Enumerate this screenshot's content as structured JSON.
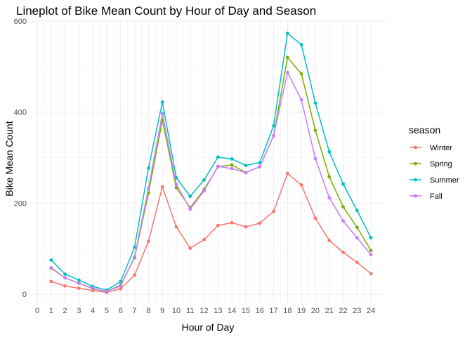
{
  "chart_data": {
    "type": "line",
    "title": "Lineplot of Bike Mean Count by Hour of Day and Season",
    "xlabel": "Hour of Day",
    "ylabel": "Bike Mean Count",
    "x": [
      1,
      2,
      3,
      4,
      5,
      6,
      7,
      8,
      9,
      10,
      11,
      12,
      13,
      14,
      15,
      16,
      17,
      18,
      19,
      20,
      21,
      22,
      23,
      24
    ],
    "x_ticks": [
      0,
      1,
      2,
      3,
      4,
      5,
      6,
      7,
      8,
      9,
      10,
      11,
      12,
      13,
      14,
      15,
      16,
      17,
      18,
      19,
      20,
      21,
      22,
      23,
      24
    ],
    "y_ticks": [
      0,
      200,
      400,
      600
    ],
    "xlim": [
      0,
      24.6
    ],
    "ylim": [
      -20,
      600
    ],
    "grid": true,
    "legend": {
      "title": "season",
      "position": "right"
    },
    "series": [
      {
        "name": "Winter",
        "color": "#F8766D",
        "values": [
          28,
          18,
          13,
          8,
          4,
          12,
          42,
          116,
          236,
          148,
          101,
          120,
          151,
          157,
          148,
          156,
          182,
          265,
          240,
          167,
          118,
          92,
          70,
          45
        ]
      },
      {
        "name": "Spring",
        "color": "#7CAE00",
        "values": [
          57,
          36,
          24,
          12,
          6,
          20,
          80,
          222,
          382,
          234,
          190,
          230,
          280,
          284,
          267,
          280,
          348,
          520,
          484,
          360,
          258,
          192,
          147,
          96
        ]
      },
      {
        "name": "Summer",
        "color": "#00BFC4",
        "values": [
          75,
          44,
          31,
          17,
          9,
          28,
          103,
          277,
          422,
          256,
          215,
          251,
          301,
          297,
          283,
          289,
          370,
          573,
          548,
          420,
          313,
          242,
          184,
          124
        ]
      },
      {
        "name": "Fall",
        "color": "#C77CFF",
        "values": [
          58,
          36,
          24,
          13,
          6,
          18,
          82,
          232,
          397,
          241,
          187,
          227,
          281,
          276,
          267,
          280,
          348,
          487,
          427,
          298,
          212,
          161,
          124,
          87
        ]
      }
    ]
  }
}
